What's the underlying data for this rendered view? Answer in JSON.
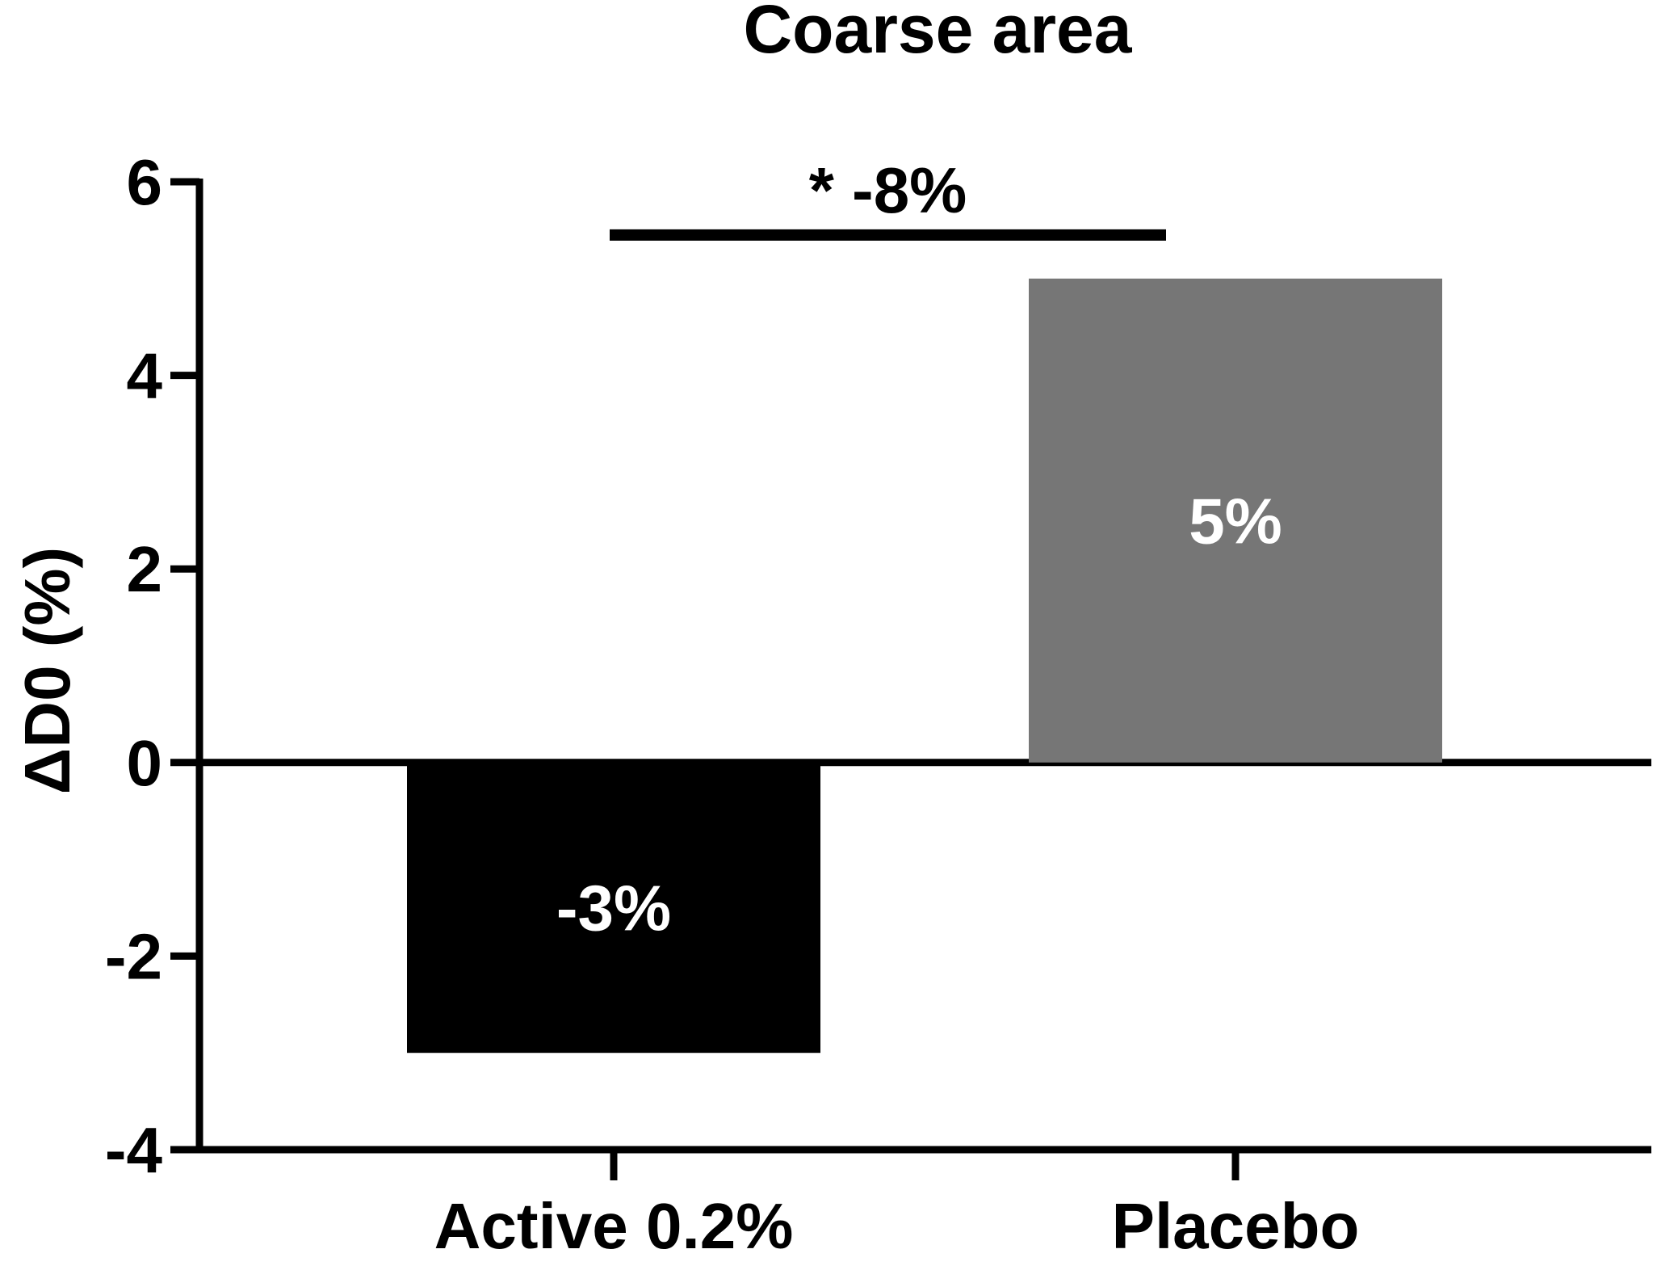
{
  "chart_data": {
    "type": "bar",
    "title": "Coarse area",
    "xlabel": "",
    "ylabel": "ΔD0 (%)",
    "categories": [
      "Active 0.2%",
      "Placebo"
    ],
    "values": [
      -3,
      5
    ],
    "bar_labels": [
      "-3%",
      "5%"
    ],
    "bar_colors": [
      "#000000",
      "#767676"
    ],
    "bar_label_color": "#ffffff",
    "ylim": [
      -4,
      6
    ],
    "yticks": [
      -4,
      -2,
      0,
      2,
      4,
      6
    ],
    "ytick_labels": [
      "-4",
      "-2",
      "0",
      "2",
      "4",
      "6"
    ],
    "grid": false,
    "legend": "none",
    "annotation": {
      "text": "* -8%",
      "between": [
        0,
        1
      ],
      "y": 5.45
    }
  }
}
